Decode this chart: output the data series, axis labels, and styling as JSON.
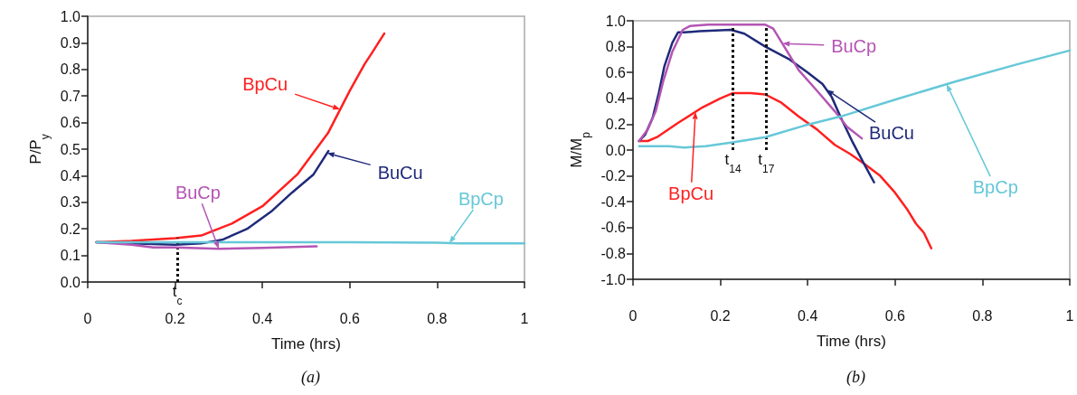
{
  "chart_data": [
    {
      "type": "line",
      "title": "(a)",
      "xlabel": "Time (hrs)",
      "ylabel": "P/P$_{y}$",
      "xlim": [
        0,
        1
      ],
      "xticks": [
        0,
        0.2,
        0.4,
        0.6,
        0.8,
        1
      ],
      "ylim": [
        0,
        1
      ],
      "yticks": [
        {
          "value": 0,
          "label": "0.0"
        },
        {
          "value": 0.1,
          "label": "0.1"
        },
        {
          "value": 0.2,
          "label": "0.2"
        },
        {
          "value": 0.3,
          "label": "0.3"
        },
        {
          "value": 0.4,
          "label": "0.4"
        },
        {
          "value": 0.5,
          "label": "0.5"
        },
        {
          "value": 0.6,
          "label": "0.6"
        },
        {
          "value": 0.7,
          "label": "0.7"
        },
        {
          "value": 0.8,
          "label": "0.8"
        },
        {
          "value": 0.9,
          "label": "0.9"
        },
        {
          "value": 1,
          "label": "1.0"
        }
      ],
      "grid": false,
      "marker": "none",
      "line_style": "solid",
      "series": [
        {
          "name": "BpCu",
          "color": "#ff2020",
          "x": [
            0.02,
            0.1,
            0.2,
            0.26,
            0.33,
            0.4,
            0.48,
            0.55,
            0.6,
            0.634,
            0.65,
            0.679
          ],
          "values": [
            0.15,
            0.155,
            0.165,
            0.175,
            0.22,
            0.285,
            0.405,
            0.56,
            0.72,
            0.82,
            0.86,
            0.935
          ]
        },
        {
          "name": "BuCu",
          "color": "#1f2a7a",
          "x": [
            0.02,
            0.1,
            0.2,
            0.26,
            0.31,
            0.365,
            0.42,
            0.468,
            0.517,
            0.551
          ],
          "values": [
            0.15,
            0.145,
            0.14,
            0.145,
            0.16,
            0.2,
            0.265,
            0.337,
            0.405,
            0.493
          ]
        },
        {
          "name": "BuCp",
          "color": "#b455b4",
          "x": [
            0.02,
            0.1,
            0.15,
            0.2,
            0.3,
            0.4,
            0.524
          ],
          "values": [
            0.15,
            0.14,
            0.13,
            0.13,
            0.125,
            0.128,
            0.134
          ]
        },
        {
          "name": "BpCp",
          "color": "#66c8d8",
          "x": [
            0.02,
            0.2,
            0.4,
            0.6,
            0.8,
            0.85,
            1
          ],
          "values": [
            0.15,
            0.15,
            0.15,
            0.15,
            0.148,
            0.145,
            0.145
          ]
        }
      ],
      "ref_lines": [
        {
          "axis": "x",
          "value": 0.205,
          "label": "t$_{c}$",
          "line_style": "dotted"
        }
      ]
    },
    {
      "type": "line",
      "title": "(b)",
      "xlabel": "Time (hrs)",
      "ylabel": "M/M$_{p}$",
      "xlim": [
        0,
        1
      ],
      "xticks": [
        0,
        0.2,
        0.4,
        0.6,
        0.8,
        1
      ],
      "ylim": [
        -1,
        1
      ],
      "yticks": [
        {
          "value": -1,
          "label": "-1.0"
        },
        {
          "value": -0.8,
          "label": "-0.8"
        },
        {
          "value": -0.6,
          "label": "-0.6"
        },
        {
          "value": -0.4,
          "label": "-0.4"
        },
        {
          "value": -0.2,
          "label": "-0.2"
        },
        {
          "value": 0,
          "label": "0.0"
        },
        {
          "value": 0.2,
          "label": "0.2"
        },
        {
          "value": 0.4,
          "label": "0.4"
        },
        {
          "value": 0.6,
          "label": "0.6"
        },
        {
          "value": 0.8,
          "label": "0.8"
        },
        {
          "value": 1,
          "label": "1.0"
        }
      ],
      "grid": false,
      "marker": "none",
      "line_style": "solid",
      "series": [
        {
          "name": "BpCu",
          "color": "#ff2020",
          "x": [
            0.014,
            0.034,
            0.055,
            0.103,
            0.159,
            0.2,
            0.228,
            0.269,
            0.303,
            0.338,
            0.379,
            0.421,
            0.462,
            0.497,
            0.531,
            0.566,
            0.6,
            0.628,
            0.648,
            0.666,
            0.683
          ],
          "values": [
            0.07,
            0.07,
            0.1,
            0.21,
            0.33,
            0.4,
            0.44,
            0.44,
            0.43,
            0.37,
            0.26,
            0.16,
            0.04,
            -0.03,
            -0.11,
            -0.2,
            -0.33,
            -0.46,
            -0.57,
            -0.64,
            -0.76
          ]
        },
        {
          "name": "BuCu",
          "color": "#1f2a7a",
          "x": [
            0.014,
            0.028,
            0.045,
            0.059,
            0.072,
            0.09,
            0.103,
            0.117,
            0.152,
            0.224,
            0.255,
            0.303,
            0.359,
            0.4,
            0.434,
            0.455,
            0.476,
            0.503,
            0.528,
            0.552
          ],
          "values": [
            0.07,
            0.12,
            0.25,
            0.44,
            0.65,
            0.83,
            0.91,
            0.91,
            0.92,
            0.93,
            0.9,
            0.8,
            0.7,
            0.6,
            0.51,
            0.41,
            0.25,
            0.06,
            -0.1,
            -0.25
          ]
        },
        {
          "name": "BuCp",
          "color": "#b455b4",
          "x": [
            0.014,
            0.034,
            0.052,
            0.069,
            0.09,
            0.114,
            0.131,
            0.172,
            0.303,
            0.321,
            0.341,
            0.379,
            0.421,
            0.462,
            0.49,
            0.524
          ],
          "values": [
            0.07,
            0.16,
            0.3,
            0.53,
            0.76,
            0.93,
            0.96,
            0.97,
            0.97,
            0.94,
            0.83,
            0.62,
            0.46,
            0.3,
            0.18,
            0.09
          ]
        },
        {
          "name": "BpCp",
          "color": "#66c8d8",
          "x": [
            0.014,
            0.083,
            0.117,
            0.166,
            0.228,
            0.303,
            0.393,
            0.476,
            0.6,
            0.738,
            0.876,
            1
          ],
          "values": [
            0.03,
            0.03,
            0.02,
            0.03,
            0.06,
            0.1,
            0.19,
            0.26,
            0.39,
            0.53,
            0.66,
            0.77
          ]
        }
      ],
      "ref_lines": [
        {
          "axis": "x",
          "value": 0.229,
          "label": "t$_{14}$",
          "line_style": "dotted"
        },
        {
          "axis": "x",
          "value": 0.305,
          "label": "t$_{17}$",
          "line_style": "dotted"
        }
      ]
    }
  ]
}
